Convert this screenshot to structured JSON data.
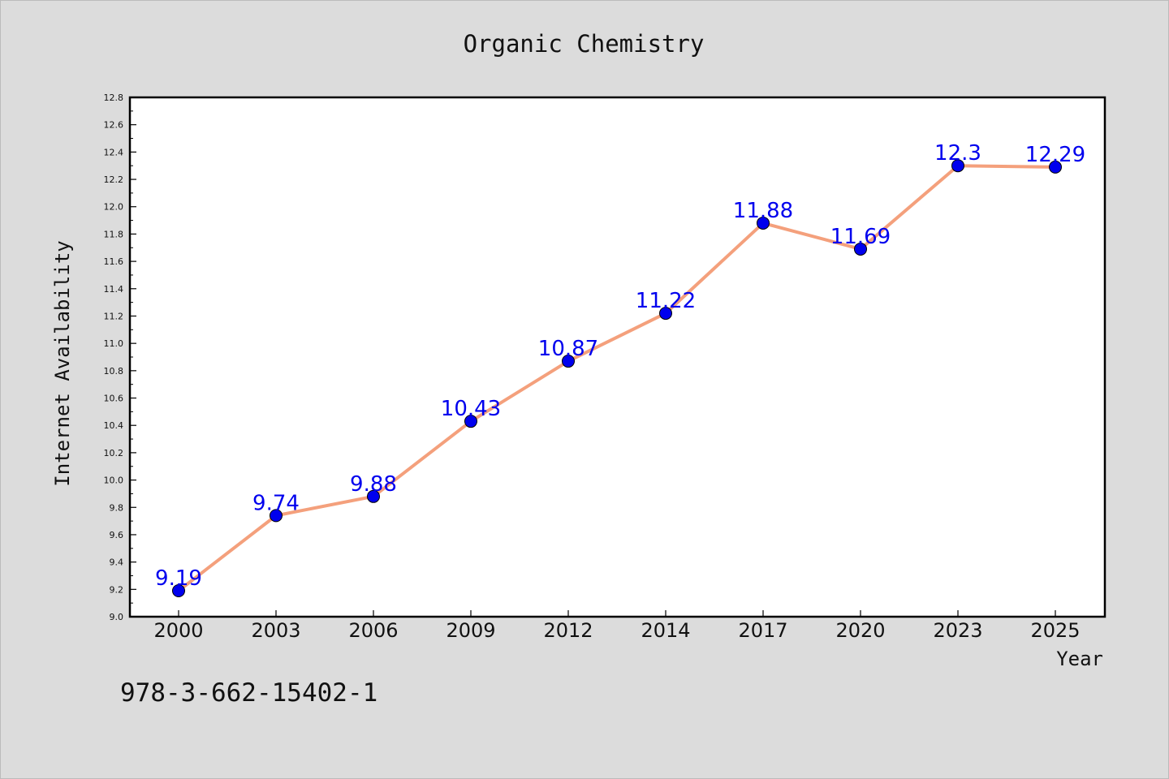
{
  "chart_data": {
    "type": "line",
    "title": "Organic Chemistry",
    "xlabel": "Year",
    "ylabel": "Internet Availability",
    "categories": [
      "2000",
      "2003",
      "2006",
      "2009",
      "2012",
      "2014",
      "2017",
      "2020",
      "2023",
      "2025"
    ],
    "values": [
      9.19,
      9.74,
      9.88,
      10.43,
      10.87,
      11.22,
      11.88,
      11.69,
      12.3,
      12.29
    ],
    "data_labels": [
      "9.19",
      "9.74",
      "9.88",
      "10.43",
      "10.87",
      "11.22",
      "11.88",
      "11.69",
      "12.3",
      "12.29"
    ],
    "ylim": [
      9.0,
      12.8
    ],
    "yticks": [
      "9.0",
      "9.2",
      "9.4",
      "9.6",
      "9.8",
      "10.0",
      "10.2",
      "10.4",
      "10.6",
      "10.8",
      "11.0",
      "11.2",
      "11.4",
      "11.6",
      "11.8",
      "12.0",
      "12.2",
      "12.4",
      "12.6",
      "12.8"
    ],
    "grid": false,
    "line_color": "#f4a07c",
    "marker_color": "#0000ee",
    "label_color": "#0000ee"
  },
  "footer": {
    "isbn": "978-3-662-15402-1"
  }
}
